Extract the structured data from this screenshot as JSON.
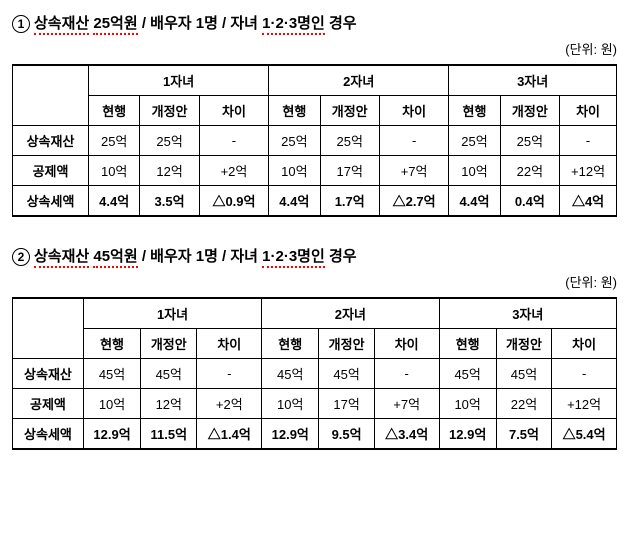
{
  "unit_label": "(단위: 원)",
  "subheads": [
    "현행",
    "개정안",
    "차이"
  ],
  "rowlabels": [
    "상속재산",
    "공제액",
    "상속세액"
  ],
  "sections": [
    {
      "number": "1",
      "title_segments": [
        "상속재산",
        " ",
        "25억원",
        "  /  배우자 1명  /  자녀 ",
        "1·2·3명인",
        " 경우"
      ],
      "underline_idx": [
        0,
        2,
        4
      ],
      "groups": [
        "1자녀",
        "2자녀",
        "3자녀"
      ],
      "rows": [
        [
          "25억",
          "25억",
          "-",
          "25억",
          "25억",
          "-",
          "25억",
          "25억",
          "-"
        ],
        [
          "10억",
          "12억",
          "+2억",
          "10억",
          "17억",
          "+7억",
          "10억",
          "22억",
          "+12억"
        ],
        [
          "4.4억",
          "3.5억",
          "△0.9억",
          "4.4억",
          "1.7억",
          "△2.7억",
          "4.4억",
          "0.4억",
          "△4억"
        ]
      ],
      "bold_row_idx": 2
    },
    {
      "number": "2",
      "title_segments": [
        "상속재산",
        " ",
        "45억원",
        "  /  배우자 1명  /  자녀 ",
        "1·2·3명인",
        " 경우"
      ],
      "underline_idx": [
        0,
        2,
        4
      ],
      "groups": [
        "1자녀",
        "2자녀",
        "3자녀"
      ],
      "rows": [
        [
          "45억",
          "45억",
          "-",
          "45억",
          "45억",
          "-",
          "45억",
          "45억",
          "-"
        ],
        [
          "10억",
          "12억",
          "+2억",
          "10억",
          "17억",
          "+7억",
          "10억",
          "22억",
          "+12억"
        ],
        [
          "12.9억",
          "11.5억",
          "△1.4억",
          "12.9억",
          "9.5억",
          "△3.4억",
          "12.9억",
          "7.5억",
          "△5.4억"
        ]
      ],
      "bold_row_idx": 2
    }
  ]
}
